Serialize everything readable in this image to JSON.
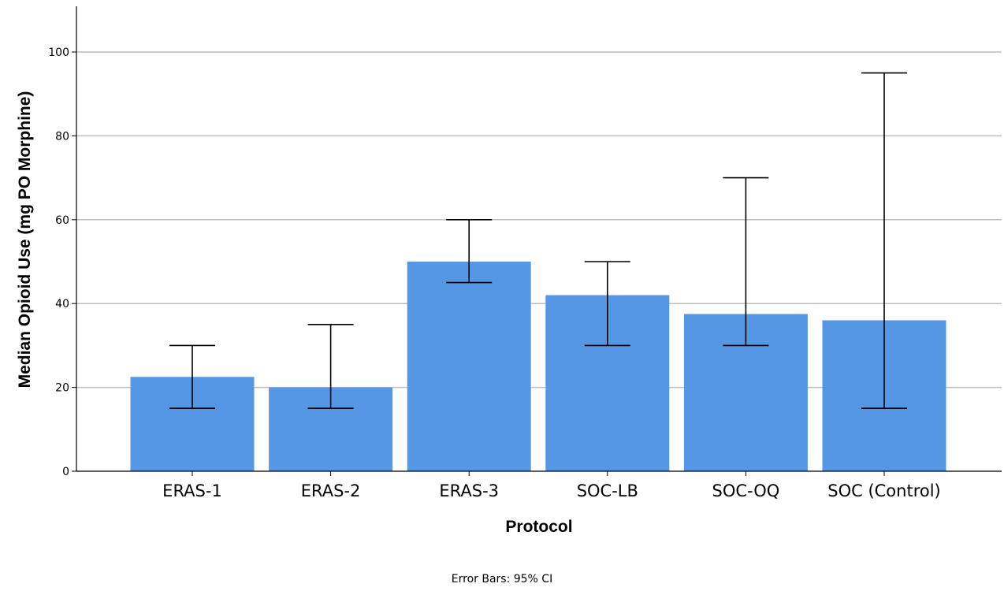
{
  "chart_data": {
    "type": "bar",
    "categories": [
      "ERAS-1",
      "ERAS-2",
      "ERAS-3",
      "SOC-LB",
      "SOC-OQ",
      "SOC (Control)"
    ],
    "values": [
      22.5,
      20,
      50,
      42,
      37.5,
      36
    ],
    "error_bars": {
      "lower": [
        15,
        15,
        45,
        30,
        30,
        15
      ],
      "upper": [
        30,
        35,
        60,
        50,
        70,
        95
      ]
    },
    "xlabel": "Protocol",
    "ylabel": "Median Opioid Use (mg PO Morphine)",
    "ylim": [
      0,
      110
    ],
    "yticks": [
      0,
      20,
      40,
      60,
      80,
      100
    ],
    "grid": true,
    "bar_color": "#5596e5",
    "footnote": "Error Bars: 95% CI"
  }
}
